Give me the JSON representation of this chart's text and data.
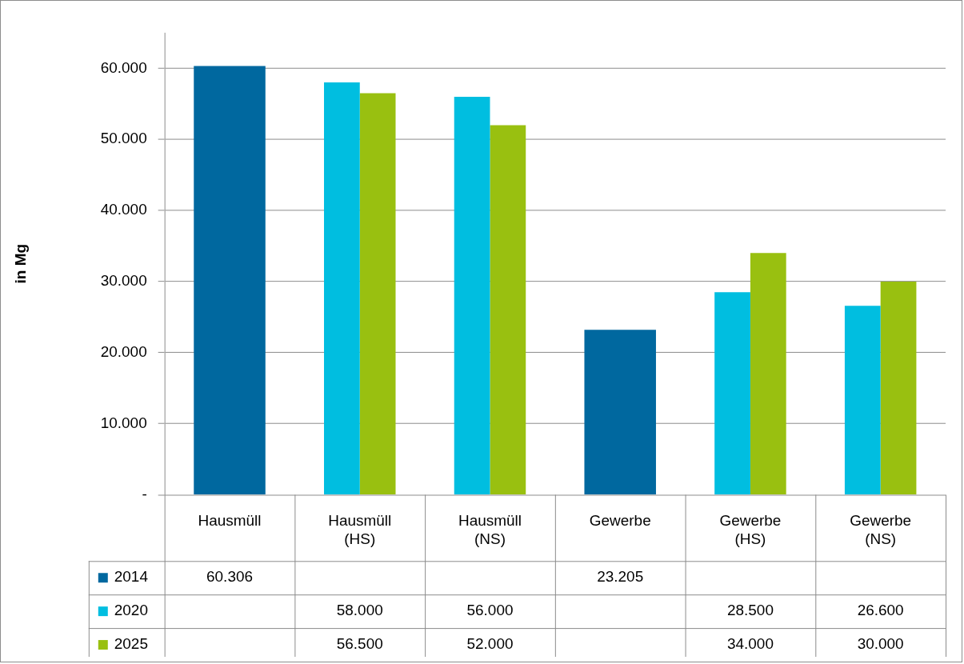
{
  "chart_data": {
    "type": "bar",
    "ylabel": "in Mg",
    "categories": [
      "Hausmüll",
      "Hausmüll (HS)",
      "Hausmüll (NS)",
      "Gewerbe",
      "Gewerbe (HS)",
      "Gewerbe (NS)"
    ],
    "series": [
      {
        "name": "2014",
        "color": "#00689f",
        "values": [
          60306,
          null,
          null,
          23205,
          null,
          null
        ],
        "value_labels": [
          "60.306",
          null,
          null,
          "23.205",
          null,
          null
        ]
      },
      {
        "name": "2020",
        "color": "#00bee0",
        "values": [
          null,
          58000,
          56000,
          null,
          28500,
          26600
        ],
        "value_labels": [
          null,
          "58.000",
          "56.000",
          null,
          "28.500",
          "26.600"
        ]
      },
      {
        "name": "2025",
        "color": "#99c010",
        "values": [
          null,
          56500,
          52000,
          null,
          34000,
          30000
        ],
        "value_labels": [
          null,
          "56.500",
          "52.000",
          null,
          "34.000",
          "30.000"
        ]
      }
    ],
    "ylim": [
      0,
      65000
    ],
    "yticks": [
      {
        "value": 0,
        "label": "-"
      },
      {
        "value": 10000,
        "label": "10.000"
      },
      {
        "value": 20000,
        "label": "20.000"
      },
      {
        "value": 30000,
        "label": "30.000"
      },
      {
        "value": 40000,
        "label": "40.000"
      },
      {
        "value": 50000,
        "label": "50.000"
      },
      {
        "value": 60000,
        "label": "60.000"
      }
    ],
    "grid": "y",
    "legend": "bottom"
  }
}
